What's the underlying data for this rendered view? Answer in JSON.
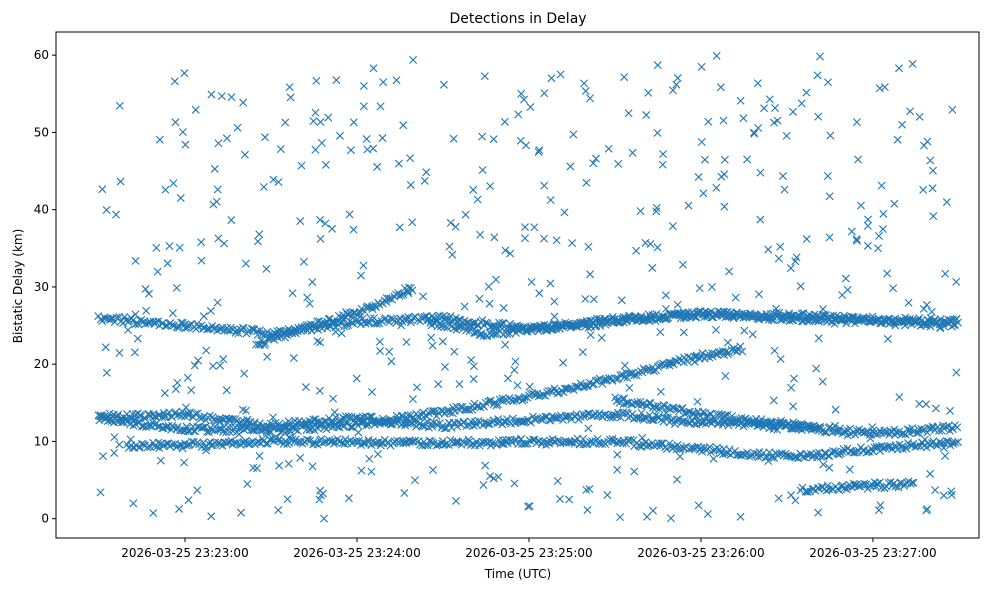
{
  "chart_data": {
    "type": "scatter",
    "title": "Detections in Delay",
    "xlabel": "Time (UTC)",
    "ylabel": "Bistatic Delay (km)",
    "x_unit": "time of day 2026-03-25 (HH:MM:SS)",
    "xlim": [
      "23:22:15",
      "23:27:37"
    ],
    "ylim": [
      -2.5,
      63
    ],
    "x_tick_labels": [
      "2026-03-25 23:23:00",
      "2026-03-25 23:24:00",
      "2026-03-25 23:25:00",
      "2026-03-25 23:26:00",
      "2026-03-25 23:27:00"
    ],
    "y_tick_labels": [
      "0",
      "10",
      "20",
      "30",
      "40",
      "50",
      "60"
    ],
    "y_ticks": [
      0,
      10,
      20,
      30,
      40,
      50,
      60
    ],
    "marker": "x",
    "color": "#1f77b4",
    "grid": false,
    "legend": "none",
    "tracks": [
      {
        "x": [
          "23:22:30",
          "23:23:00",
          "23:23:30",
          "23:24:00",
          "23:24:30",
          "23:25:00",
          "23:25:30",
          "23:26:00",
          "23:26:15"
        ],
        "y": [
          13,
          11.6,
          11.5,
          12.2,
          13.8,
          15.8,
          18.2,
          21,
          22
        ]
      },
      {
        "x": [
          "23:23:25",
          "23:23:40",
          "23:24:00",
          "23:24:10",
          "23:24:20"
        ],
        "y": [
          22.5,
          24.5,
          26.5,
          28.2,
          30
        ]
      },
      {
        "x": [
          "23:24:25",
          "23:24:45",
          "23:25:00",
          "23:25:30",
          "23:26:00",
          "23:26:30",
          "23:27:00",
          "23:27:30"
        ],
        "y": [
          25.5,
          24,
          24.5,
          25.5,
          26.5,
          26.3,
          25.8,
          25.5
        ]
      },
      {
        "x": [
          "23:25:30",
          "23:25:45",
          "23:26:00",
          "23:26:15",
          "23:26:30",
          "23:26:42"
        ],
        "y": [
          15.5,
          14.5,
          13.5,
          12.8,
          12.2,
          11.5
        ]
      },
      {
        "x": [
          "23:22:30",
          "23:23:00",
          "23:23:30",
          "23:24:00",
          "23:24:30",
          "23:25:00",
          "23:25:30",
          "23:26:00",
          "23:26:30",
          "23:27:00",
          "23:27:30"
        ],
        "y": [
          26,
          25,
          24,
          25.5,
          26,
          24.5,
          25.8,
          26.5,
          26,
          25.5,
          25
        ]
      },
      {
        "x": [
          "23:22:30",
          "23:23:00",
          "23:23:30",
          "23:24:00",
          "23:24:30",
          "23:25:00",
          "23:25:30",
          "23:26:00",
          "23:26:30",
          "23:27:00",
          "23:27:30"
        ],
        "y": [
          13,
          13.5,
          12,
          13,
          12,
          12.8,
          13.5,
          12.5,
          12,
          11,
          11.8
        ]
      },
      {
        "x": [
          "23:22:40",
          "23:23:00",
          "23:23:30",
          "23:24:30",
          "23:25:30",
          "23:26:30",
          "23:27:15",
          "23:27:30"
        ],
        "y": [
          9.5,
          9.5,
          10,
          9.8,
          10,
          8,
          9.5,
          10
        ]
      },
      {
        "x": [
          "23:26:35",
          "23:26:45",
          "23:27:00",
          "23:27:15"
        ],
        "y": [
          3.8,
          4,
          4.3,
          4.5
        ]
      }
    ]
  }
}
